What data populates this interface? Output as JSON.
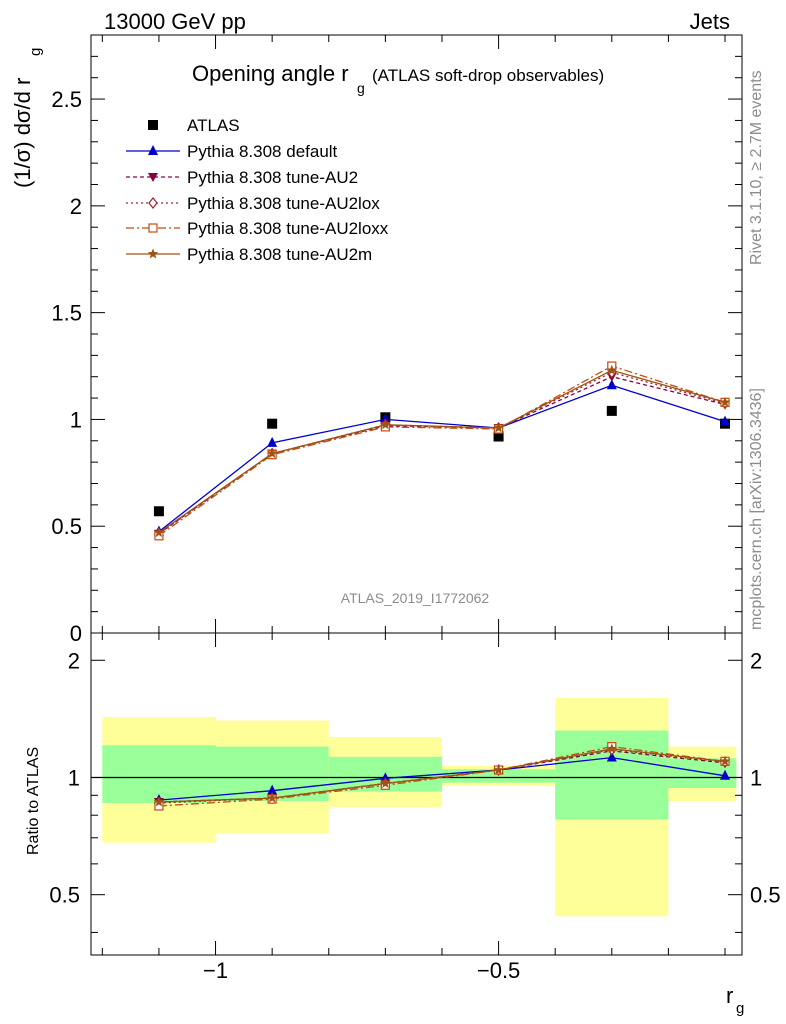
{
  "header": {
    "left": "13000 GeV pp",
    "right": "Jets"
  },
  "main_plot": {
    "title_main": "Opening angle r",
    "title_sub": "g",
    "title_note": "(ATLAS soft-drop observables)",
    "ylabel": "(1/σ) dσ/d r",
    "ylabel_sub": "g",
    "analysis_id": "ATLAS_2019_I1772062",
    "side_label_1": "Rivet 3.1.10, ≥ 2.7M events",
    "side_label_2": "mcplots.cern.ch [arXiv:1306.3436]"
  },
  "ratio_plot": {
    "ylabel": "Ratio to ATLAS",
    "xlabel": "r",
    "xlabel_sub": "g"
  },
  "legend": [
    {
      "label": "ATLAS"
    },
    {
      "label": "Pythia 8.308 default"
    },
    {
      "label": "Pythia 8.308 tune-AU2"
    },
    {
      "label": "Pythia 8.308 tune-AU2lox"
    },
    {
      "label": "Pythia 8.308 tune-AU2loxx"
    },
    {
      "label": "Pythia 8.308 tune-AU2m"
    }
  ],
  "chart_data": [
    {
      "type": "line",
      "title": "Opening angle r_g (ATLAS soft-drop observables)",
      "xlabel": "r_g",
      "ylabel": "(1/σ) dσ/d r_g",
      "xlim": [
        -1.22,
        -0.07
      ],
      "ylim": [
        0,
        2.8
      ],
      "y_ticks": [
        0.5,
        1,
        1.5,
        2,
        2.5
      ],
      "y_tick_labels": [
        "0.5",
        "1",
        "1.5",
        "2",
        "2.5"
      ],
      "x": [
        -1.1,
        -0.9,
        -0.7,
        -0.5,
        -0.3,
        -0.1
      ],
      "bin_edges": [
        -1.2,
        -1.0,
        -0.8,
        -0.6,
        -0.4,
        -0.2,
        -0.08
      ],
      "series": [
        {
          "name": "ATLAS",
          "values": [
            0.57,
            0.98,
            1.01,
            0.92,
            1.04,
            0.98
          ],
          "color": "#000000",
          "marker": "square",
          "dash": "none"
        },
        {
          "name": "Pythia 8.308 default",
          "values": [
            0.475,
            0.89,
            1.0,
            0.96,
            1.16,
            0.99
          ],
          "color": "#0000cc",
          "marker": "triangle-up",
          "dash": "solid"
        },
        {
          "name": "Pythia 8.308 tune-AU2",
          "values": [
            0.465,
            0.84,
            0.97,
            0.96,
            1.2,
            1.07
          ],
          "color": "#8b0045",
          "marker": "triangle-down",
          "dash": "4,3"
        },
        {
          "name": "Pythia 8.308 tune-AU2lox",
          "values": [
            0.465,
            0.84,
            0.975,
            0.96,
            1.22,
            1.075
          ],
          "color": "#a0202e",
          "marker": "diamond-open",
          "dash": "2,3"
        },
        {
          "name": "Pythia 8.308 tune-AU2loxx",
          "values": [
            0.455,
            0.835,
            0.965,
            0.955,
            1.25,
            1.08
          ],
          "color": "#c84a10",
          "marker": "square-open",
          "dash": "8,3,2,3"
        },
        {
          "name": "Pythia 8.308 tune-AU2m",
          "values": [
            0.47,
            0.84,
            0.975,
            0.96,
            1.23,
            1.08
          ],
          "color": "#9c5414",
          "marker": "star",
          "dash": "solid"
        }
      ]
    },
    {
      "type": "line",
      "ylabel": "Ratio to ATLAS",
      "xlabel": "r_g",
      "xlim": [
        -1.22,
        -0.07
      ],
      "ylim": [
        0.35,
        2.35
      ],
      "log_y": true,
      "y_ticks": [
        0.5,
        1,
        2
      ],
      "y_tick_labels": [
        "0.5",
        "1",
        "2"
      ],
      "x_ticks": [
        -1,
        -0.5
      ],
      "x_tick_labels": [
        "−1",
        "−0.5"
      ],
      "x": [
        -1.1,
        -0.9,
        -0.7,
        -0.5,
        -0.3,
        -0.1
      ],
      "bands": {
        "bin_edges": [
          -1.2,
          -1.0,
          -0.8,
          -0.6,
          -0.4,
          -0.2,
          -0.08
        ],
        "green_low": [
          0.86,
          0.87,
          0.92,
          0.97,
          0.78,
          0.94
        ],
        "green_high": [
          1.21,
          1.2,
          1.13,
          1.05,
          1.32,
          1.12
        ],
        "yellow_low": [
          0.68,
          0.72,
          0.84,
          0.95,
          0.44,
          0.87
        ],
        "yellow_high": [
          1.43,
          1.4,
          1.27,
          1.07,
          1.6,
          1.2
        ],
        "green_color": "#99ff99",
        "yellow_color": "#ffff99"
      },
      "series": [
        {
          "name": "Pythia 8.308 default",
          "values": [
            0.875,
            0.925,
            0.995,
            1.045,
            1.125,
            1.01
          ],
          "color": "#0000cc",
          "marker": "triangle-up",
          "dash": "solid"
        },
        {
          "name": "Pythia 8.308 tune-AU2",
          "values": [
            0.865,
            0.885,
            0.965,
            1.045,
            1.17,
            1.09
          ],
          "color": "#8b0045",
          "marker": "triangle-down",
          "dash": "4,3"
        },
        {
          "name": "Pythia 8.308 tune-AU2lox",
          "values": [
            0.86,
            0.885,
            0.965,
            1.045,
            1.18,
            1.095
          ],
          "color": "#a0202e",
          "marker": "diamond-open",
          "dash": "2,3"
        },
        {
          "name": "Pythia 8.308 tune-AU2loxx",
          "values": [
            0.845,
            0.88,
            0.955,
            1.045,
            1.2,
            1.1
          ],
          "color": "#c84a10",
          "marker": "square-open",
          "dash": "8,3,2,3"
        },
        {
          "name": "Pythia 8.308 tune-AU2m",
          "values": [
            0.865,
            0.885,
            0.965,
            1.045,
            1.185,
            1.1
          ],
          "color": "#9c5414",
          "marker": "star",
          "dash": "solid"
        }
      ]
    }
  ]
}
